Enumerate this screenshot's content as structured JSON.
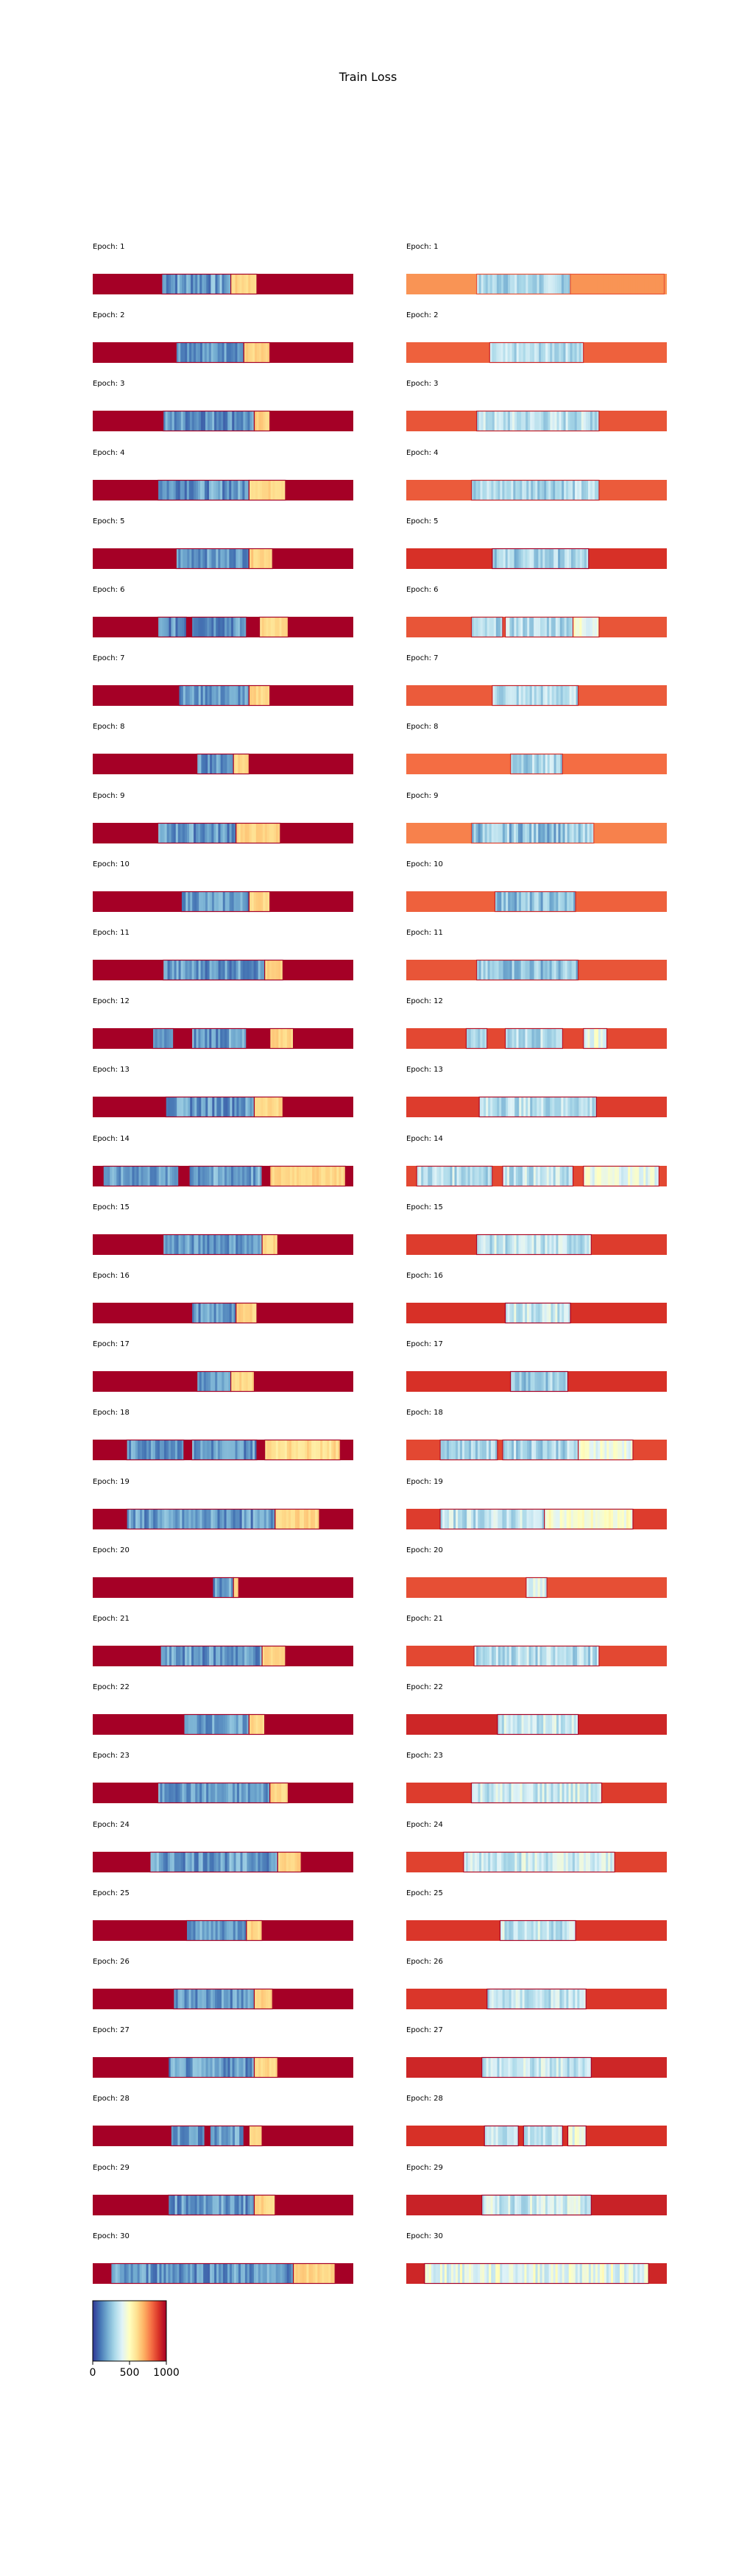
{
  "chart_data": {
    "type": "heatmap",
    "title": "Train Loss",
    "panel_label_prefix": "Epoch: ",
    "colormap": "RdYlBu_r",
    "colorbar": {
      "min": 0,
      "max": 1000,
      "ticks": [
        0,
        500,
        1000
      ]
    },
    "panels": [
      {
        "epoch": 1,
        "left": {
          "background": 1000,
          "segments": [
            [
              0.265,
              0.53,
              180,
              0.7
            ],
            [
              0.53,
              0.63,
              620,
              0.2
            ]
          ]
        },
        "right": {
          "background": 740,
          "segments": [
            [
              0.27,
              0.63,
              300,
              0.55
            ],
            [
              0.63,
              0.99,
              740,
              0
            ]
          ]
        }
      },
      {
        "epoch": 2,
        "left": {
          "background": 1000,
          "segments": [
            [
              0.32,
              0.58,
              170,
              0.5
            ],
            [
              0.58,
              0.68,
              620,
              0.2
            ]
          ]
        },
        "right": {
          "background": 820,
          "segments": [
            [
              0.32,
              0.68,
              320,
              0.5
            ]
          ]
        }
      },
      {
        "epoch": 3,
        "left": {
          "background": 1000,
          "segments": [
            [
              0.27,
              0.62,
              160,
              0.6
            ],
            [
              0.62,
              0.68,
              630,
              0.2
            ]
          ]
        },
        "right": {
          "background": 840,
          "segments": [
            [
              0.27,
              0.74,
              330,
              0.6
            ]
          ]
        }
      },
      {
        "epoch": 4,
        "left": {
          "background": 1000,
          "segments": [
            [
              0.25,
              0.6,
              170,
              0.6
            ],
            [
              0.6,
              0.74,
              620,
              0.2
            ]
          ]
        },
        "right": {
          "background": 830,
          "segments": [
            [
              0.25,
              0.74,
              310,
              0.6
            ]
          ]
        }
      },
      {
        "epoch": 5,
        "left": {
          "background": 1000,
          "segments": [
            [
              0.32,
              0.6,
              170,
              0.5
            ],
            [
              0.6,
              0.69,
              630,
              0.2
            ]
          ]
        },
        "right": {
          "background": 900,
          "segments": [
            [
              0.33,
              0.7,
              290,
              0.6
            ]
          ]
        }
      },
      {
        "epoch": 6,
        "left": {
          "background": 1000,
          "segments": [
            [
              0.25,
              0.36,
              150,
              0.6
            ],
            [
              0.38,
              0.59,
              160,
              0.6
            ],
            [
              0.64,
              0.75,
              610,
              0.2
            ]
          ]
        },
        "right": {
          "background": 840,
          "segments": [
            [
              0.25,
              0.37,
              300,
              0.5
            ],
            [
              0.38,
              0.64,
              320,
              0.6
            ],
            [
              0.64,
              0.74,
              450,
              0.6
            ]
          ]
        }
      },
      {
        "epoch": 7,
        "left": {
          "background": 1000,
          "segments": [
            [
              0.33,
              0.6,
              170,
              0.5
            ],
            [
              0.6,
              0.68,
              620,
              0.2
            ]
          ]
        },
        "right": {
          "background": 830,
          "segments": [
            [
              0.33,
              0.66,
              320,
              0.6
            ]
          ]
        }
      },
      {
        "epoch": 8,
        "left": {
          "background": 1000,
          "segments": [
            [
              0.4,
              0.54,
              160,
              0.5
            ],
            [
              0.54,
              0.6,
              620,
              0.2
            ]
          ]
        },
        "right": {
          "background": 800,
          "segments": [
            [
              0.4,
              0.6,
              300,
              0.6
            ]
          ]
        }
      },
      {
        "epoch": 9,
        "left": {
          "background": 1000,
          "segments": [
            [
              0.25,
              0.55,
              170,
              0.6
            ],
            [
              0.55,
              0.72,
              620,
              0.2
            ]
          ]
        },
        "right": {
          "background": 770,
          "segments": [
            [
              0.25,
              0.72,
              260,
              0.7
            ]
          ]
        }
      },
      {
        "epoch": 10,
        "left": {
          "background": 1000,
          "segments": [
            [
              0.34,
              0.6,
              180,
              0.5
            ],
            [
              0.6,
              0.68,
              620,
              0.2
            ]
          ]
        },
        "right": {
          "background": 820,
          "segments": [
            [
              0.34,
              0.65,
              250,
              0.6
            ]
          ]
        }
      },
      {
        "epoch": 11,
        "left": {
          "background": 1000,
          "segments": [
            [
              0.27,
              0.66,
              170,
              0.6
            ],
            [
              0.66,
              0.73,
              620,
              0.2
            ]
          ]
        },
        "right": {
          "background": 840,
          "segments": [
            [
              0.27,
              0.66,
              260,
              0.6
            ]
          ]
        }
      },
      {
        "epoch": 12,
        "left": {
          "background": 1000,
          "segments": [
            [
              0.23,
              0.31,
              150,
              0.3
            ],
            [
              0.38,
              0.59,
              170,
              0.6
            ],
            [
              0.68,
              0.77,
              620,
              0.2
            ]
          ]
        },
        "right": {
          "background": 860,
          "segments": [
            [
              0.23,
              0.31,
              300,
              0.3
            ],
            [
              0.38,
              0.6,
              320,
              0.6
            ],
            [
              0.68,
              0.77,
              430,
              0.5
            ]
          ]
        }
      },
      {
        "epoch": 13,
        "left": {
          "background": 1000,
          "segments": [
            [
              0.28,
              0.62,
              170,
              0.6
            ],
            [
              0.62,
              0.73,
              620,
              0.2
            ]
          ]
        },
        "right": {
          "background": 880,
          "segments": [
            [
              0.28,
              0.73,
              330,
              0.6
            ]
          ]
        }
      },
      {
        "epoch": 14,
        "left": {
          "background": 1000,
          "segments": [
            [
              0.04,
              0.33,
              170,
              0.5
            ],
            [
              0.37,
              0.65,
              180,
              0.6
            ],
            [
              0.68,
              0.97,
              620,
              0.2
            ]
          ]
        },
        "right": {
          "background": 860,
          "segments": [
            [
              0.04,
              0.33,
              330,
              0.6
            ],
            [
              0.37,
              0.64,
              340,
              0.6
            ],
            [
              0.68,
              0.97,
              430,
              0.5
            ]
          ]
        }
      },
      {
        "epoch": 15,
        "left": {
          "background": 1000,
          "segments": [
            [
              0.27,
              0.65,
              170,
              0.5
            ],
            [
              0.65,
              0.71,
              620,
              0.2
            ]
          ]
        },
        "right": {
          "background": 880,
          "segments": [
            [
              0.27,
              0.71,
              340,
              0.6
            ]
          ]
        }
      },
      {
        "epoch": 16,
        "left": {
          "background": 1000,
          "segments": [
            [
              0.38,
              0.55,
              170,
              0.5
            ],
            [
              0.55,
              0.63,
              620,
              0.2
            ]
          ]
        },
        "right": {
          "background": 900,
          "segments": [
            [
              0.38,
              0.63,
              360,
              0.6
            ]
          ]
        }
      },
      {
        "epoch": 17,
        "left": {
          "background": 1000,
          "segments": [
            [
              0.4,
              0.53,
              160,
              0.5
            ],
            [
              0.53,
              0.62,
              620,
              0.2
            ]
          ]
        },
        "right": {
          "background": 900,
          "segments": [
            [
              0.4,
              0.62,
              280,
              0.6
            ]
          ]
        }
      },
      {
        "epoch": 18,
        "left": {
          "background": 1000,
          "segments": [
            [
              0.13,
              0.35,
              170,
              0.5
            ],
            [
              0.38,
              0.63,
              170,
              0.6
            ],
            [
              0.66,
              0.95,
              600,
              0.3
            ]
          ]
        },
        "right": {
          "background": 860,
          "segments": [
            [
              0.13,
              0.35,
              300,
              0.5
            ],
            [
              0.37,
              0.66,
              310,
              0.6
            ],
            [
              0.66,
              0.87,
              450,
              0.5
            ]
          ]
        }
      },
      {
        "epoch": 19,
        "left": {
          "background": 1000,
          "segments": [
            [
              0.13,
              0.7,
              170,
              0.6
            ],
            [
              0.7,
              0.87,
              620,
              0.2
            ]
          ]
        },
        "right": {
          "background": 880,
          "segments": [
            [
              0.13,
              0.53,
              340,
              0.6
            ],
            [
              0.53,
              0.87,
              470,
              0.4
            ]
          ]
        }
      },
      {
        "epoch": 20,
        "left": {
          "background": 1000,
          "segments": [
            [
              0.46,
              0.54,
              170,
              0.5
            ],
            [
              0.54,
              0.56,
              620,
              0
            ]
          ]
        },
        "right": {
          "background": 850,
          "segments": [
            [
              0.46,
              0.54,
              380,
              0.5
            ]
          ]
        }
      },
      {
        "epoch": 21,
        "left": {
          "background": 1000,
          "segments": [
            [
              0.26,
              0.65,
              170,
              0.6
            ],
            [
              0.65,
              0.74,
              620,
              0.2
            ]
          ]
        },
        "right": {
          "background": 860,
          "segments": [
            [
              0.26,
              0.74,
              320,
              0.6
            ]
          ]
        }
      },
      {
        "epoch": 22,
        "left": {
          "background": 1000,
          "segments": [
            [
              0.35,
              0.6,
              180,
              0.5
            ],
            [
              0.6,
              0.66,
              620,
              0.2
            ]
          ]
        },
        "right": {
          "background": 920,
          "segments": [
            [
              0.35,
              0.66,
              350,
              0.6
            ]
          ]
        }
      },
      {
        "epoch": 23,
        "left": {
          "background": 1000,
          "segments": [
            [
              0.25,
              0.68,
              170,
              0.5
            ],
            [
              0.68,
              0.75,
              620,
              0.2
            ]
          ]
        },
        "right": {
          "background": 880,
          "segments": [
            [
              0.25,
              0.75,
              360,
              0.6
            ]
          ]
        }
      },
      {
        "epoch": 24,
        "left": {
          "background": 1000,
          "segments": [
            [
              0.22,
              0.71,
              180,
              0.6
            ],
            [
              0.71,
              0.8,
              620,
              0.2
            ]
          ]
        },
        "right": {
          "background": 870,
          "segments": [
            [
              0.22,
              0.8,
              370,
              0.6
            ]
          ]
        }
      },
      {
        "epoch": 25,
        "left": {
          "background": 1000,
          "segments": [
            [
              0.36,
              0.59,
              180,
              0.5
            ],
            [
              0.59,
              0.65,
              620,
              0.2
            ]
          ]
        },
        "right": {
          "background": 890,
          "segments": [
            [
              0.36,
              0.65,
              350,
              0.6
            ]
          ]
        }
      },
      {
        "epoch": 26,
        "left": {
          "background": 1000,
          "segments": [
            [
              0.31,
              0.62,
              170,
              0.6
            ],
            [
              0.62,
              0.69,
              620,
              0.2
            ]
          ]
        },
        "right": {
          "background": 890,
          "segments": [
            [
              0.31,
              0.69,
              340,
              0.6
            ]
          ]
        }
      },
      {
        "epoch": 27,
        "left": {
          "background": 1000,
          "segments": [
            [
              0.29,
              0.62,
              170,
              0.6
            ],
            [
              0.62,
              0.71,
              620,
              0.2
            ]
          ]
        },
        "right": {
          "background": 920,
          "segments": [
            [
              0.29,
              0.71,
              350,
              0.6
            ]
          ]
        }
      },
      {
        "epoch": 28,
        "left": {
          "background": 1000,
          "segments": [
            [
              0.3,
              0.43,
              170,
              0.5
            ],
            [
              0.45,
              0.58,
              170,
              0.6
            ],
            [
              0.6,
              0.65,
              620,
              0.2
            ]
          ]
        },
        "right": {
          "background": 900,
          "segments": [
            [
              0.3,
              0.43,
              350,
              0.5
            ],
            [
              0.45,
              0.6,
              350,
              0.5
            ],
            [
              0.62,
              0.69,
              430,
              0.5
            ]
          ]
        }
      },
      {
        "epoch": 29,
        "left": {
          "background": 1000,
          "segments": [
            [
              0.29,
              0.62,
              170,
              0.6
            ],
            [
              0.62,
              0.7,
              620,
              0.2
            ]
          ]
        },
        "right": {
          "background": 930,
          "segments": [
            [
              0.29,
              0.71,
              360,
              0.6
            ]
          ]
        }
      },
      {
        "epoch": 30,
        "left": {
          "background": 1000,
          "segments": [
            [
              0.07,
              0.77,
              170,
              0.6
            ],
            [
              0.77,
              0.93,
              620,
              0.2
            ]
          ]
        },
        "right": {
          "background": 920,
          "segments": [
            [
              0.07,
              0.93,
              420,
              0.6
            ]
          ]
        }
      }
    ]
  }
}
